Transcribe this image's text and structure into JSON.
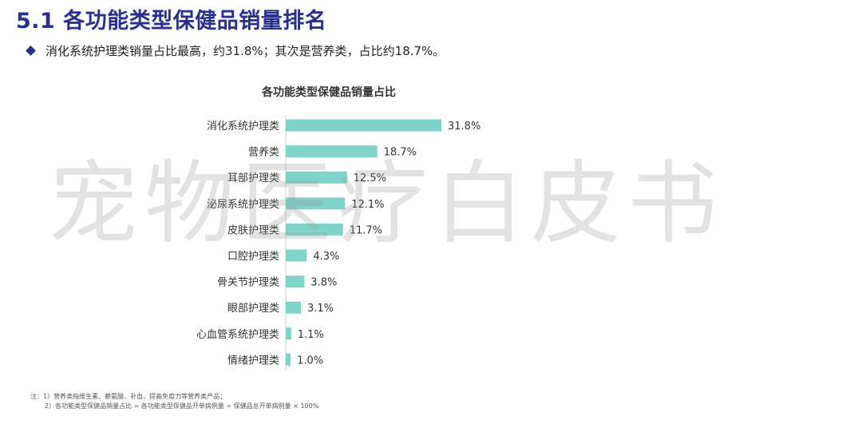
{
  "title": "5.1 各功能类型保健品销量排名",
  "bullet": "消化系统护理类销量占比最高，约31.8%；其次是营养类，占比约18.7%。",
  "watermark": "宠物医疗白皮书",
  "colors": {
    "bar": "#7fd3c9",
    "title": "#2b2f8f"
  },
  "icon": "diamond-bullet-icon",
  "chart_data": {
    "type": "bar",
    "orientation": "horizontal",
    "title": "各功能类型保健品销量占比",
    "categories": [
      "消化系统护理类",
      "营养类",
      "耳部护理类",
      "泌尿系统护理类",
      "皮肤护理类",
      "口腔护理类",
      "骨关节护理类",
      "眼部护理类",
      "心血管系统护理类",
      "情绪护理类"
    ],
    "values": [
      31.8,
      18.7,
      12.5,
      12.1,
      11.7,
      4.3,
      3.8,
      3.1,
      1.1,
      1.0
    ],
    "value_labels": [
      "31.8%",
      "18.7%",
      "12.5%",
      "12.1%",
      "11.7%",
      "4.3%",
      "3.8%",
      "3.1%",
      "1.1%",
      "1.0%"
    ],
    "xlim": [
      0,
      31.8
    ],
    "grid": false,
    "legend": "none"
  },
  "notes": [
    "注：1）营养类指维生素、赖氨酸、补血、提高免疫力等营养类产品；",
    "2）各功能类型保健品销量占比 = 各功能类型保健品开单病例量 ÷ 保健品总开单病例量 × 100%"
  ]
}
